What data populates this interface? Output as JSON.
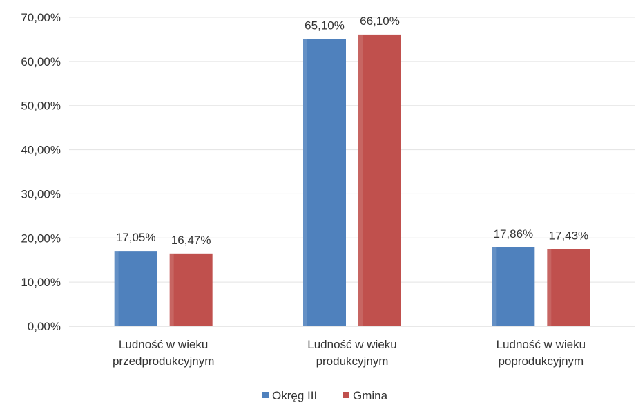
{
  "chart_data": {
    "type": "bar",
    "title": "",
    "xlabel": "",
    "ylabel": "",
    "categories": [
      [
        "Ludność w wieku",
        "przedprodukcyjnym"
      ],
      [
        "Ludność w wieku",
        "produkcyjnym"
      ],
      [
        "Ludność w wieku",
        "poprodukcyjnym"
      ]
    ],
    "series": [
      {
        "name": "Okręg III",
        "color": "#4f81bd",
        "values": [
          17.05,
          65.1,
          17.86
        ],
        "labels": [
          "17,05%",
          "65,10%",
          "17,86%"
        ]
      },
      {
        "name": "Gmina",
        "color": "#c0504d",
        "values": [
          16.47,
          66.1,
          17.43
        ],
        "labels": [
          "16,47%",
          "66,10%",
          "17,43%"
        ]
      }
    ],
    "ylim": [
      0,
      70
    ],
    "yticks": [
      0,
      10,
      20,
      30,
      40,
      50,
      60,
      70
    ],
    "ytick_labels": [
      "0,00%",
      "10,00%",
      "20,00%",
      "30,00%",
      "40,00%",
      "50,00%",
      "60,00%",
      "70,00%"
    ],
    "grid": true,
    "legend": "bottom"
  }
}
